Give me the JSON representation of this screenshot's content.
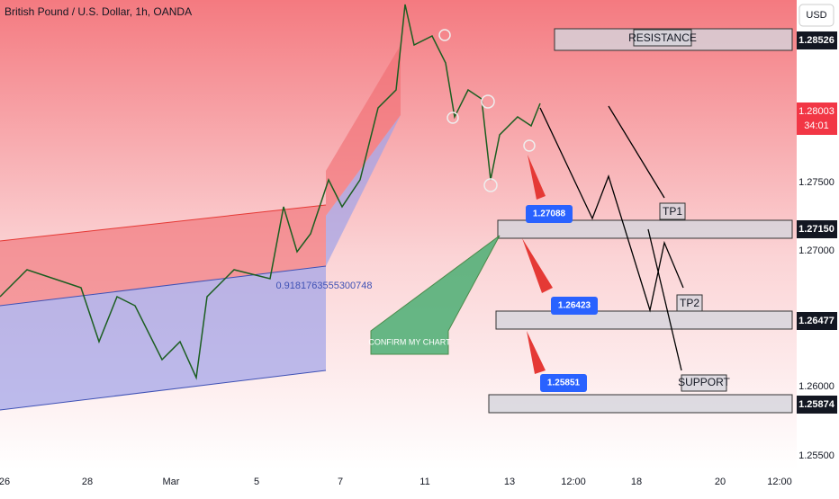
{
  "header": {
    "title": "British Pound / U.S. Dollar, 1h, OANDA",
    "currency": "USD"
  },
  "price_axis": {
    "labels": [
      "1.28526",
      "1.28003",
      "34:01",
      "1.27500",
      "1.27150",
      "1.27000",
      "1.26477",
      "1.26000",
      "1.25874",
      "1.25500"
    ]
  },
  "time_axis": {
    "labels": [
      "26",
      "28",
      "Mar",
      "5",
      "7",
      "11",
      "13",
      "12:00",
      "18",
      "20",
      "12:00"
    ]
  },
  "annotations": {
    "resistance": "RESISTANCE",
    "tp1": "TP1",
    "tp2": "TP2",
    "support": "SUPPORT",
    "target1": "1.27088",
    "target2": "1.26423",
    "target3": "1.25851",
    "confirm": "CONFIRM MY CHART",
    "channel_value": "0.9181763555300748"
  }
}
